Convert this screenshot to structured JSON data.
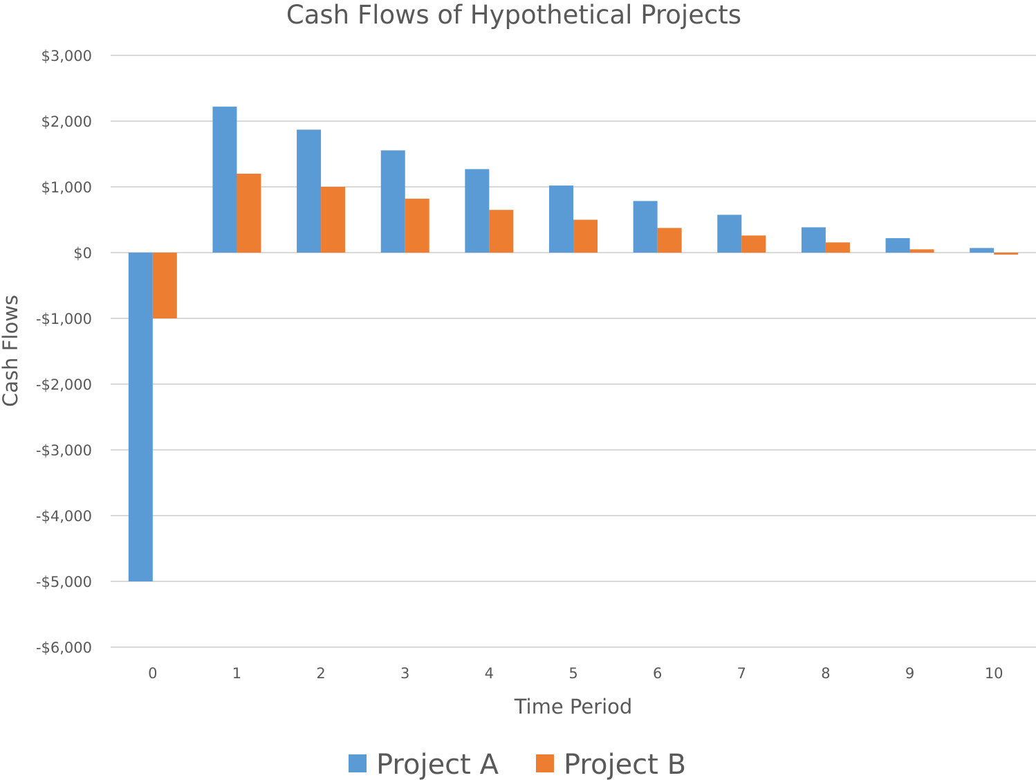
{
  "chart_data": {
    "type": "bar",
    "title": "Cash Flows of Hypothetical Projects",
    "xlabel": "Time Period",
    "ylabel": "Cash Flows",
    "categories": [
      "0",
      "1",
      "2",
      "3",
      "4",
      "5",
      "6",
      "7",
      "8",
      "9",
      "10"
    ],
    "series": [
      {
        "name": "Project A",
        "color": "#5B9BD5",
        "values": [
          -5000,
          2220,
          1870,
          1555,
          1270,
          1020,
          785,
          575,
          385,
          220,
          70
        ]
      },
      {
        "name": "Project B",
        "color": "#ED7D31",
        "values": [
          -1000,
          1200,
          1000,
          820,
          650,
          500,
          375,
          260,
          155,
          50,
          -30
        ]
      }
    ],
    "ylim": [
      -6000,
      3000
    ],
    "yticks": [
      3000,
      2000,
      1000,
      0,
      -1000,
      -2000,
      -3000,
      -4000,
      -5000,
      -6000
    ],
    "ytick_labels": [
      "$3,000",
      "$2,000",
      "$1,000",
      "$0",
      "-$1,000",
      "-$2,000",
      "-$3,000",
      "-$4,000",
      "-$5,000",
      "-$6,000"
    ],
    "grid": true,
    "legend": "bottom"
  }
}
